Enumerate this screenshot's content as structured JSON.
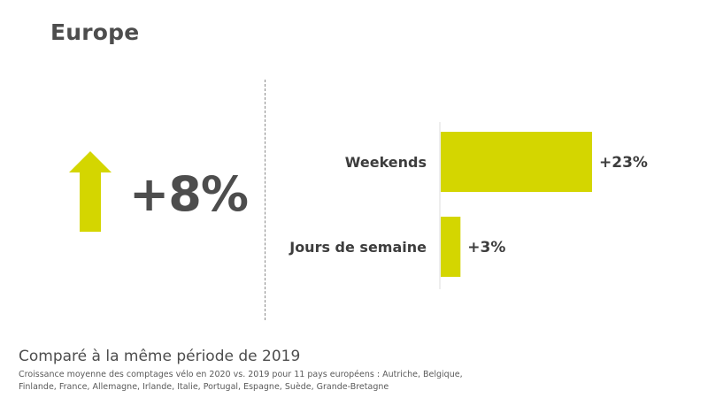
{
  "title": "Europe",
  "summary": {
    "value": "+8%",
    "icon": "arrow-up-icon",
    "accent_color": "#d4d600"
  },
  "chart_data": {
    "type": "bar",
    "orientation": "horizontal",
    "categories": [
      "Weekends",
      "Jours de semaine"
    ],
    "values": [
      23,
      3
    ],
    "value_labels": [
      "+23%",
      "+3%"
    ],
    "unit": "%",
    "xlim": [
      0,
      25
    ],
    "bar_color": "#d4d600",
    "grid": false,
    "title": "",
    "xlabel": "",
    "ylabel": ""
  },
  "footer": {
    "title": "Comparé à la même période de 2019",
    "note_line1": "Croissance moyenne des comptages vélo en 2020 vs. 2019 pour 11 pays européens : Autriche, Belgique,",
    "note_line2": "Finlande, France, Allemagne, Irlande, Italie, Portugal, Espagne, Suède, Grande-Bretagne"
  }
}
